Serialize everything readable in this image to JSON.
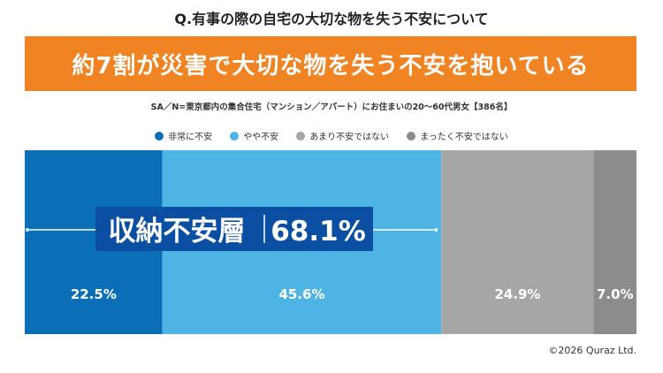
{
  "question": "Q.有事の際の自宅の大切な物を失う不安について",
  "headline": "約7割が災害で大切な物を失う不安を抱いている",
  "note": "SA／N=東京都内の集合住宅（マンション／アパート）にお住まいの20〜60代男女【386名】",
  "copyright": "©2026 Quraz Ltd.",
  "callout": {
    "label": "収納不安層",
    "value": "68.1%"
  },
  "chart_data": {
    "type": "bar",
    "stacked": true,
    "orientation": "horizontal",
    "unit": "%",
    "series": [
      {
        "name": "非常に不安",
        "value": 22.5,
        "label": "22.5%",
        "color": "#0b6fb8"
      },
      {
        "name": "やや不安",
        "value": 45.6,
        "label": "45.6%",
        "color": "#4db4e4"
      },
      {
        "name": "あまり不安ではない",
        "value": 24.9,
        "label": "24.9%",
        "color": "#a6a6a6"
      },
      {
        "name": "まったく不安ではない",
        "value": 7.0,
        "label": "7.0%",
        "color": "#8c8c8c"
      }
    ],
    "legend_position": "top-center",
    "grid": false
  }
}
